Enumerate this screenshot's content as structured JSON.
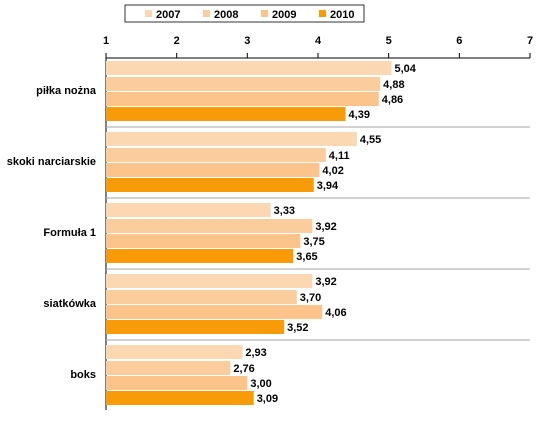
{
  "chart_data": {
    "type": "bar",
    "orientation": "horizontal",
    "categories": [
      "piłka nożna",
      "skoki narciarskie",
      "Formuła 1",
      "siatkówka",
      "boks"
    ],
    "series": [
      {
        "name": "2007",
        "color": "#fbd7b2",
        "values": [
          5.04,
          4.55,
          3.33,
          3.92,
          2.93
        ]
      },
      {
        "name": "2008",
        "color": "#fbcd9c",
        "values": [
          4.88,
          4.11,
          3.92,
          3.7,
          2.76
        ]
      },
      {
        "name": "2009",
        "color": "#fcc38a",
        "values": [
          4.86,
          4.02,
          3.75,
          4.06,
          3.0
        ]
      },
      {
        "name": "2010",
        "color": "#f99a09",
        "values": [
          4.39,
          3.94,
          3.65,
          3.52,
          3.09
        ]
      }
    ],
    "value_labels": [
      [
        "5,04",
        "4,88",
        "4,86",
        "4,39"
      ],
      [
        "4,55",
        "4,11",
        "4,02",
        "3,94"
      ],
      [
        "3,33",
        "3,92",
        "3,75",
        "3,65"
      ],
      [
        "3,92",
        "3,70",
        "4,06",
        "3,52"
      ],
      [
        "2,93",
        "2,76",
        "3,00",
        "3,09"
      ]
    ],
    "xlim": [
      1,
      7
    ],
    "x_ticks": [
      "1",
      "2",
      "3",
      "4",
      "5",
      "6",
      "7"
    ],
    "tick_position": "top",
    "grid": false,
    "legend_position": "top"
  }
}
